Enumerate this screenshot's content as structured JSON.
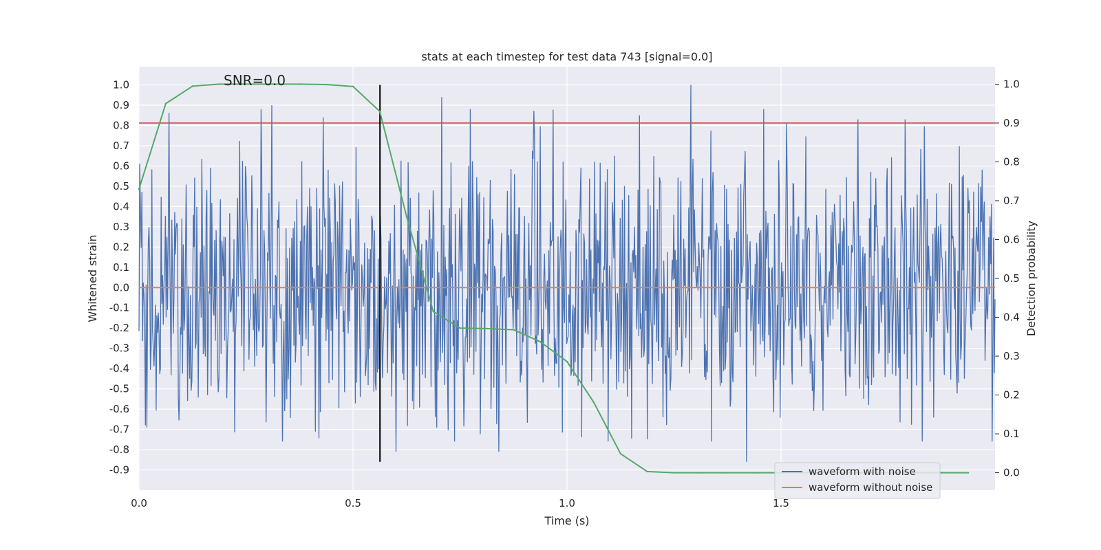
{
  "chart_data": {
    "type": "line",
    "title": "stats at each timestep for test data 743 [signal=0.0]",
    "annotation": "SNR=0.0",
    "xlabel": "Time (s)",
    "ylabel_left": "Whitened strain",
    "ylabel_right": "Detection probability",
    "xlim": [
      0.0,
      2.0
    ],
    "ylim_left": [
      -1.0,
      1.09
    ],
    "ylim_right": [
      -0.045,
      1.045
    ],
    "x_ticks": [
      "0.0",
      "0.5",
      "1.0",
      "1.5"
    ],
    "y_left_ticks": [
      "1.0",
      "0.9",
      "0.8",
      "0.7",
      "0.6",
      "0.5",
      "0.4",
      "0.3",
      "0.2",
      "0.1",
      "0.0",
      "-0.1",
      "-0.2",
      "-0.3",
      "-0.4",
      "-0.5",
      "-0.6",
      "-0.7",
      "-0.8",
      "-0.9"
    ],
    "y_right_ticks": [
      "1.0",
      "0.9",
      "0.8",
      "0.7",
      "0.6",
      "0.5",
      "0.4",
      "0.3",
      "0.2",
      "0.1",
      "0.0"
    ],
    "grid": true,
    "legend_position": "lower-right",
    "legend": [
      "waveform with noise",
      "waveform without noise"
    ],
    "threshold_line": {
      "axis": "right",
      "value": 0.9,
      "color": "#c44e52"
    },
    "marker_line": {
      "x": 0.563,
      "y_range": [
        -0.86,
        1.0
      ],
      "color": "#000000"
    },
    "series": [
      {
        "name": "waveform with noise",
        "axis": "left",
        "color": "#4c72b0",
        "kind": "noise",
        "sample_count": 1200,
        "range_observed": [
          -0.86,
          1.0
        ],
        "notable_peaks": [
          {
            "x": 0.31,
            "y": 0.9
          },
          {
            "x": 0.43,
            "y": 0.84
          },
          {
            "x": 0.707,
            "y": 0.94
          },
          {
            "x": 1.17,
            "y": 0.85
          },
          {
            "x": 1.29,
            "y": 1.0
          },
          {
            "x": 1.79,
            "y": 0.83
          },
          {
            "x": 1.42,
            "y": -0.86
          },
          {
            "x": 0.84,
            "y": -0.81
          },
          {
            "x": 0.6,
            "y": -0.81
          }
        ]
      },
      {
        "name": "waveform without noise",
        "axis": "left",
        "color": "#dd8452",
        "x": [
          0.0,
          2.0
        ],
        "y": [
          0.0,
          0.0
        ]
      },
      {
        "axis": "right",
        "color": "#55a868",
        "x": [
          0.0,
          0.0625,
          0.125,
          0.1875,
          0.25,
          0.3125,
          0.375,
          0.4375,
          0.5,
          0.5625,
          0.625,
          0.6875,
          0.75,
          0.8125,
          0.875,
          0.9375,
          1.0,
          1.0625,
          1.125,
          1.1875,
          1.25,
          1.3125,
          1.375,
          1.4375,
          1.5,
          1.5625,
          1.625,
          1.6875,
          1.75,
          1.8125,
          1.875,
          1.9375
        ],
        "y": [
          0.73,
          0.95,
          0.995,
          1.0,
          1.0,
          1.0,
          1.0,
          0.999,
          0.994,
          0.93,
          0.66,
          0.415,
          0.372,
          0.371,
          0.368,
          0.337,
          0.286,
          0.181,
          0.049,
          0.003,
          0.0,
          0.0,
          0.0,
          0.0,
          0.0,
          0.0,
          0.0,
          0.0,
          0.0,
          0.0,
          0.0,
          0.0
        ]
      }
    ]
  }
}
